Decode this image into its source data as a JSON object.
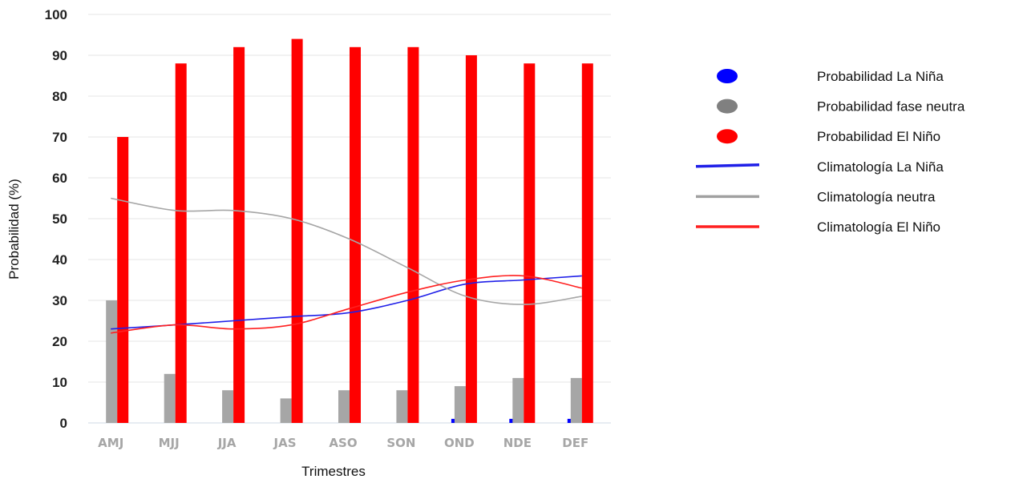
{
  "chart_data": {
    "type": "bar",
    "title": "",
    "xlabel": "Trimestres",
    "ylabel": "Probabilidad (%)",
    "ylim": [
      0,
      100
    ],
    "yticks": [
      "0",
      "10",
      "20",
      "30",
      "40",
      "50",
      "60",
      "70",
      "80",
      "90",
      "100"
    ],
    "categories": [
      "AMJ",
      "MJJ",
      "JJA",
      "JAS",
      "ASO",
      "SON",
      "OND",
      "NDE",
      "DEF"
    ],
    "grid": true,
    "legend_position": "right",
    "series": [
      {
        "name": "Probabilidad La Niña",
        "kind": "bar",
        "color": "#0000ff",
        "values": [
          0,
          0,
          0,
          0,
          0,
          0,
          1,
          1,
          1
        ]
      },
      {
        "name": "Probabilidad fase neutra",
        "kind": "bar",
        "color": "#a6a6a6",
        "values": [
          30,
          12,
          8,
          6,
          8,
          8,
          9,
          11,
          11
        ]
      },
      {
        "name": "Probabilidad El Niño",
        "kind": "bar",
        "color": "#ff0000",
        "values": [
          70,
          88,
          92,
          94,
          92,
          92,
          90,
          88,
          88
        ]
      },
      {
        "name": "Climatología La Niña",
        "kind": "line",
        "color": "#1f1fe8",
        "values": [
          23,
          24,
          25,
          26,
          27,
          30,
          34,
          35,
          36
        ]
      },
      {
        "name": "Climatología neutra",
        "kind": "line",
        "color": "#a6a6a6",
        "values": [
          55,
          52,
          52,
          50,
          45,
          38,
          31,
          29,
          31
        ]
      },
      {
        "name": "Climatología El Niño",
        "kind": "line",
        "color": "#ff2020",
        "values": [
          22,
          24,
          23,
          24,
          28,
          32,
          35,
          36,
          33
        ]
      }
    ]
  }
}
